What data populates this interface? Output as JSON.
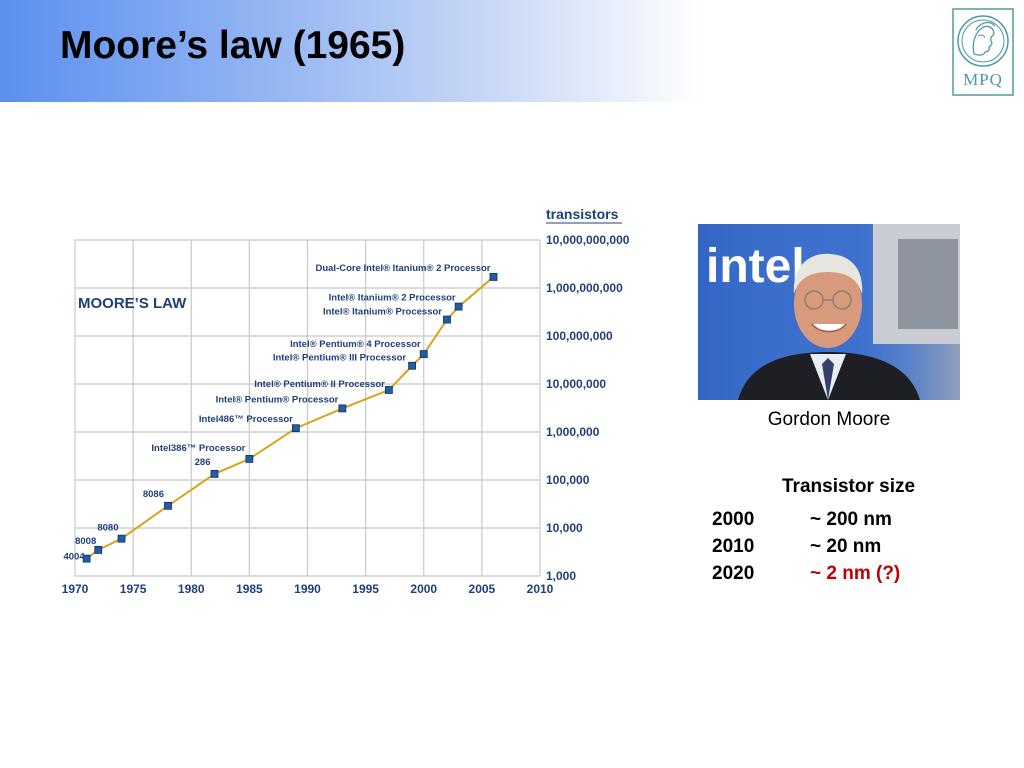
{
  "slide": {
    "title": "Moore’s law (1965)"
  },
  "logo": {
    "text": "MPQ"
  },
  "photo": {
    "caption": "Gordon Moore",
    "sign_text": "intel"
  },
  "transistor_size": {
    "heading": "Transistor size",
    "rows": [
      {
        "year": "2000",
        "value": "~ 200 nm",
        "color": "#000000"
      },
      {
        "year": "2010",
        "value": "~ 20 nm",
        "color": "#000000"
      },
      {
        "year": "2020",
        "value": "~ 2 nm (?)",
        "color": "#c00000"
      }
    ]
  },
  "chart_data": {
    "type": "line",
    "title": "MOORE’S LAW",
    "ylabel": "transistors",
    "xlabel": "",
    "xlim": [
      1970,
      2010
    ],
    "ylim": [
      1000,
      10000000000
    ],
    "yscale": "log",
    "grid": true,
    "x_ticks": [
      "1970",
      "1975",
      "1980",
      "1985",
      "1990",
      "1995",
      "2000",
      "2005",
      "2010"
    ],
    "y_ticks": [
      {
        "value": 1000,
        "label": "1,000"
      },
      {
        "value": 10000,
        "label": "10,000"
      },
      {
        "value": 100000,
        "label": "100,000"
      },
      {
        "value": 1000000,
        "label": "1,000,000"
      },
      {
        "value": 10000000,
        "label": "10,000,000"
      },
      {
        "value": 100000000,
        "label": "100,000,000"
      },
      {
        "value": 1000000000,
        "label": "1,000,000,000"
      },
      {
        "value": 10000000000,
        "label": "10,000,000,000"
      }
    ],
    "line_color": "#d9a21b",
    "marker_color": "#1f5fa8",
    "points": [
      {
        "x": 1971,
        "y": 2300,
        "label": "4004"
      },
      {
        "x": 1972,
        "y": 3500,
        "label": "8008"
      },
      {
        "x": 1974,
        "y": 6000,
        "label": "8080"
      },
      {
        "x": 1978,
        "y": 29000,
        "label": "8086"
      },
      {
        "x": 1982,
        "y": 134000,
        "label": "286"
      },
      {
        "x": 1985,
        "y": 275000,
        "label": "Intel386™ Processor"
      },
      {
        "x": 1989,
        "y": 1200000,
        "label": "Intel486™ Processor"
      },
      {
        "x": 1993,
        "y": 3100000,
        "label": "Intel® Pentium® Processor"
      },
      {
        "x": 1997,
        "y": 7500000,
        "label": "Intel® Pentium® II Processor"
      },
      {
        "x": 1999,
        "y": 24000000,
        "label": "Intel® Pentium® III Processor"
      },
      {
        "x": 2000,
        "y": 42000000,
        "label": "Intel® Pentium® 4 Processor"
      },
      {
        "x": 2002,
        "y": 220000000,
        "label": "Intel® Itanium® Processor"
      },
      {
        "x": 2003,
        "y": 410000000,
        "label": "Intel® Itanium® 2 Processor"
      },
      {
        "x": 2006,
        "y": 1700000000,
        "label": "Dual-Core Intel® Itanium® 2 Processor"
      }
    ]
  }
}
